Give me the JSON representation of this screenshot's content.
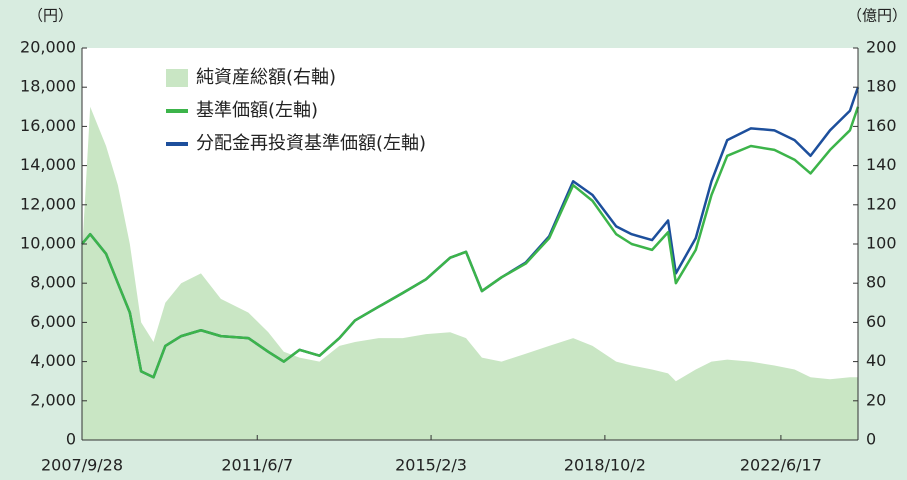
{
  "chart_data": {
    "type": "line",
    "y_unit_label": "（円）",
    "y2_unit_label": "（億円）",
    "x": [
      "2007/9/28",
      "2007/11/30",
      "2008/3/31",
      "2008/6/30",
      "2008/9/30",
      "2008/12/26",
      "2009/3/31",
      "2009/6/30",
      "2009/10/30",
      "2010/3/31",
      "2010/8/31",
      "2011/3/31",
      "2011/8/31",
      "2011/12/28",
      "2012/4/27",
      "2012/9/28",
      "2013/2/28",
      "2013/6/28",
      "2013/12/27",
      "2014/6/30",
      "2014/12/26",
      "2015/6/30",
      "2015/10/30",
      "2016/2/29",
      "2016/7/29",
      "2017/1/31",
      "2017/7/31",
      "2018/1/31",
      "2018/6/29",
      "2018/12/28",
      "2019/4/26",
      "2019/9/30",
      "2020/1/31",
      "2020/3/31",
      "2020/8/31",
      "2020/12/30",
      "2021/4/30",
      "2021/10/29",
      "2022/4/28",
      "2022/9/30",
      "2023/1/31",
      "2023/6/30",
      "2023/11/30",
      "2024/1/31"
    ],
    "series": [
      {
        "name": "純資産総額(右軸)",
        "kind": "area",
        "axis": "y2",
        "color": "#c9e6c4",
        "values": [
          95,
          170,
          150,
          130,
          100,
          60,
          50,
          70,
          80,
          85,
          72,
          65,
          55,
          45,
          42,
          40,
          48,
          50,
          52,
          52,
          54,
          55,
          52,
          42,
          40,
          44,
          48,
          52,
          48,
          40,
          38,
          36,
          34,
          30,
          36,
          40,
          41,
          40,
          38,
          36,
          32,
          31,
          32,
          32
        ]
      },
      {
        "name": "基準価額(左軸)",
        "kind": "line",
        "color": "#3cb44a",
        "values": [
          10000,
          10500,
          9500,
          8000,
          6500,
          3500,
          3200,
          4800,
          5300,
          5600,
          5300,
          5200,
          4500,
          4000,
          4600,
          4300,
          5200,
          6100,
          6800,
          7500,
          8200,
          9300,
          9600,
          7600,
          8300,
          9000,
          10300,
          13000,
          12200,
          10500,
          10000,
          9700,
          10600,
          8000,
          9700,
          12500,
          14500,
          15000,
          14800,
          14300,
          13600,
          14800,
          15800,
          17000
        ]
      },
      {
        "name": "分配金再投資基準価額(左軸)",
        "kind": "line",
        "color": "#1d4f9c",
        "values": [
          10000,
          10500,
          9500,
          8000,
          6500,
          3500,
          3200,
          4800,
          5300,
          5600,
          5300,
          5200,
          4500,
          4000,
          4600,
          4300,
          5200,
          6100,
          6800,
          7500,
          8200,
          9300,
          9600,
          7600,
          8300,
          9050,
          10400,
          13200,
          12500,
          10900,
          10500,
          10200,
          11200,
          8500,
          10300,
          13200,
          15300,
          15900,
          15800,
          15300,
          14500,
          15800,
          16800,
          18000
        ]
      }
    ],
    "xlim": [
      "2007/9/28",
      "2024/1/31"
    ],
    "xticks": [
      "2007/9/28",
      "2011/6/7",
      "2015/2/3",
      "2018/10/2",
      "2022/6/17"
    ],
    "ylim": [
      0,
      20000
    ],
    "yticks": [
      0,
      {
        "value": 2000,
        "label": "2,000"
      },
      {
        "value": 4000,
        "label": "4,000"
      },
      {
        "value": 6000,
        "label": "6,000"
      },
      {
        "value": 8000,
        "label": "8,000"
      },
      {
        "value": 10000,
        "label": "10,000"
      },
      {
        "value": 12000,
        "label": "12,000"
      },
      {
        "value": 14000,
        "label": "14,000"
      },
      {
        "value": 16000,
        "label": "16,000"
      },
      {
        "value": 18000,
        "label": "18,000"
      },
      {
        "value": 20000,
        "label": "20,000"
      }
    ],
    "y2lim": [
      0,
      200
    ],
    "y2ticks": [
      0,
      20,
      40,
      60,
      80,
      100,
      120,
      140,
      160,
      180,
      200
    ],
    "legend": "top-left"
  }
}
